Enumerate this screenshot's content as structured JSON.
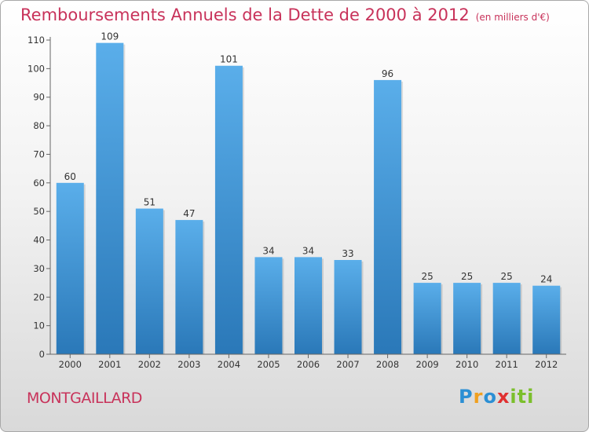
{
  "chart_data": {
    "type": "bar",
    "title": "Remboursements Annuels de la Dette de 2000 à 2012",
    "subtitle": "(en milliers d'€)",
    "categories": [
      "2000",
      "2001",
      "2002",
      "2003",
      "2004",
      "2005",
      "2006",
      "2007",
      "2008",
      "2009",
      "2010",
      "2011",
      "2012"
    ],
    "values": [
      60,
      109,
      51,
      47,
      101,
      34,
      34,
      33,
      96,
      25,
      25,
      25,
      24
    ],
    "ylim": [
      0,
      110
    ],
    "yticks": [
      0,
      10,
      20,
      30,
      40,
      50,
      60,
      70,
      80,
      90,
      100,
      110
    ],
    "xlabel": "",
    "ylabel": "",
    "grid": false,
    "bar_color": "#3a8fd6"
  },
  "footer": {
    "commune": "MONTGAILLARD",
    "logo_text": "Proxiti"
  },
  "colors": {
    "title": "#c8325a",
    "bar_top": "#5aaeea",
    "bar_bottom": "#2a78b8"
  }
}
